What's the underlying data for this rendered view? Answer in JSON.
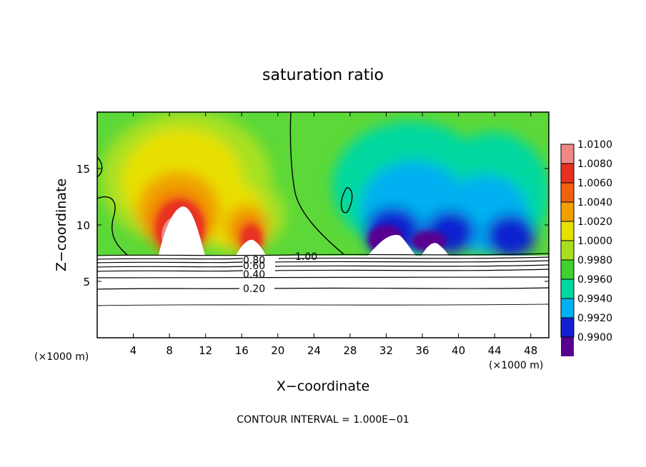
{
  "chart_data": {
    "type": "heatmap",
    "title": "saturation ratio",
    "xlabel": "X−coordinate",
    "ylabel": "Z−coordinate",
    "x_unit": "(×1000 m)",
    "y_unit": "(×1000 m)",
    "x_ticks": [
      4,
      8,
      12,
      16,
      20,
      24,
      28,
      32,
      36,
      40,
      44,
      48
    ],
    "y_ticks": [
      5,
      10,
      15
    ],
    "xlim": [
      0,
      50
    ],
    "ylim": [
      0,
      20
    ],
    "colorbar": {
      "levels": [
        "1.0100",
        "1.0080",
        "1.0060",
        "1.0040",
        "1.0020",
        "1.0000",
        "0.9980",
        "0.9960",
        "0.9940",
        "0.9920",
        "0.9900"
      ],
      "colors": [
        "#f08888",
        "#e83020",
        "#f06010",
        "#f0a000",
        "#e8e000",
        "#a8e020",
        "#40d030",
        "#00d8a0",
        "#00b0f0",
        "#1020d0",
        "#580090"
      ]
    },
    "contour_labels": [
      {
        "label": "1.00",
        "x": 23.2,
        "z": 7.2
      },
      {
        "label": "0.80",
        "x": 17.8,
        "z": 6.9
      },
      {
        "label": "0.60",
        "x": 17.8,
        "z": 6.4
      },
      {
        "label": "0.40",
        "x": 17.8,
        "z": 5.8
      },
      {
        "label": "0.20",
        "x": 17.8,
        "z": 4.4
      }
    ],
    "footer": "CONTOUR INTERVAL = 1.000E−01"
  }
}
